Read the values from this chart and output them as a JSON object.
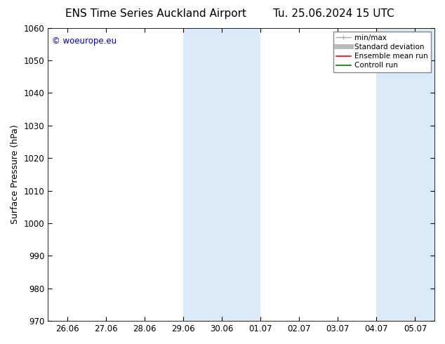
{
  "title_left": "ENS Time Series Auckland Airport",
  "title_right": "Tu. 25.06.2024 15 UTC",
  "ylabel": "Surface Pressure (hPa)",
  "ylim": [
    970,
    1060
  ],
  "yticks": [
    970,
    980,
    990,
    1000,
    1010,
    1020,
    1030,
    1040,
    1050,
    1060
  ],
  "xlabel_ticks": [
    "26.06",
    "27.06",
    "28.06",
    "29.06",
    "30.06",
    "01.07",
    "02.07",
    "03.07",
    "04.07",
    "05.07"
  ],
  "x_positions": [
    0,
    1,
    2,
    3,
    4,
    5,
    6,
    7,
    8,
    9
  ],
  "xlim": [
    -0.5,
    9.5
  ],
  "shaded_regions": [
    {
      "xmin": 3.0,
      "xmax": 5.0,
      "color": "#daeaf7"
    },
    {
      "xmin": 8.0,
      "xmax": 9.5,
      "color": "#daeaf7"
    }
  ],
  "watermark_text": "© woeurope.eu",
  "watermark_color": "#0000cc",
  "background_color": "#ffffff",
  "legend_entries": [
    {
      "label": "min/max",
      "color": "#aaaaaa",
      "lw": 1.0
    },
    {
      "label": "Standard deviation",
      "color": "#bbbbbb",
      "lw": 5
    },
    {
      "label": "Ensemble mean run",
      "color": "#ff0000",
      "lw": 1.2
    },
    {
      "label": "Controll run",
      "color": "#007700",
      "lw": 1.2
    }
  ],
  "tick_fontsize": 8.5,
  "label_fontsize": 9,
  "title_fontsize": 11,
  "watermark_fontsize": 8.5
}
